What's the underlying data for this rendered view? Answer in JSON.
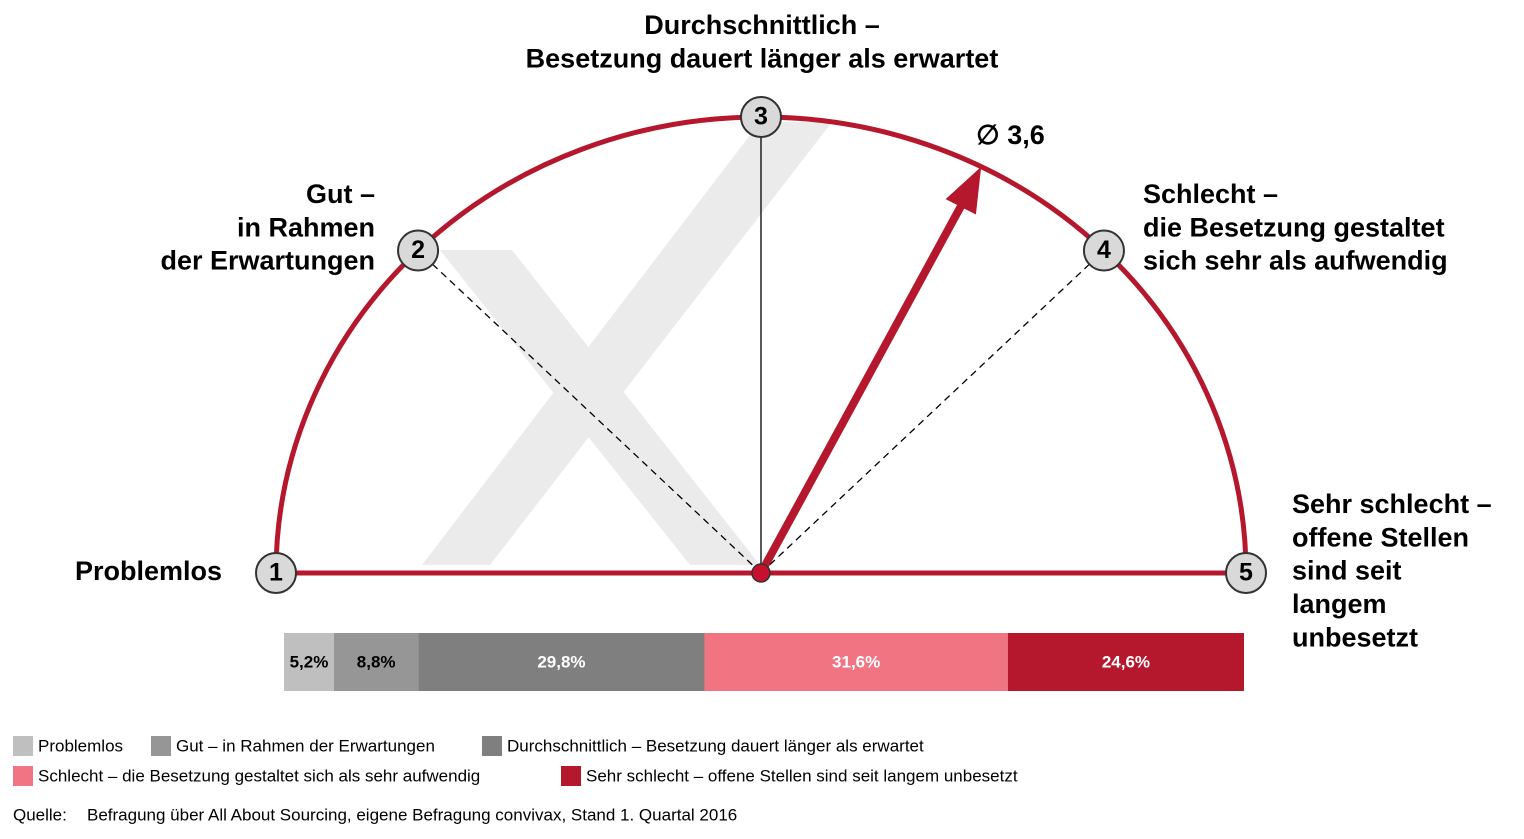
{
  "chart_data": [
    {
      "type": "gauge",
      "title": [
        "Durchschnittlich –",
        "Besetzung dauert länger als erwartet"
      ],
      "xlim": [
        1,
        5
      ],
      "xticks": [
        1,
        2,
        3,
        4,
        5
      ],
      "tick_labels": [
        [
          "Problemlos"
        ],
        [
          "Gut –",
          "in Rahmen",
          "der Erwartungen"
        ],
        [
          "Durchschnittlich –",
          "Besetzung dauert länger als erwartet"
        ],
        [
          "Schlecht –",
          "die Besetzung gestaltet",
          "sich sehr als aufwendig"
        ],
        [
          "Sehr schlecht –",
          "offene Stellen",
          "sind seit",
          "langem",
          "unbesetzt"
        ]
      ],
      "value": 3.6,
      "value_label": "∅ 3,6",
      "color": "#b5172d"
    },
    {
      "type": "bar",
      "orientation": "horizontal",
      "stacked": true,
      "xlim": [
        0,
        100
      ],
      "series": [
        {
          "name": "Problemlos",
          "color": "#bfbfbf",
          "values": [
            5.2
          ],
          "value_labels": [
            "5,2%"
          ]
        },
        {
          "name": "Gut – in Rahmen der Erwartungen",
          "color": "#969696",
          "values": [
            8.8
          ],
          "value_labels": [
            "8,8%"
          ]
        },
        {
          "name": "Durchschnittlich – Besetzung dauert länger als erwartet",
          "color": "#7f7f7f",
          "values": [
            29.8
          ],
          "value_labels": [
            "29,8%"
          ]
        },
        {
          "name": "Schlecht – die Besetzung gestaltet sich als sehr aufwendig",
          "color": "#f07482",
          "values": [
            31.6
          ],
          "value_labels": [
            "31,6%"
          ]
        },
        {
          "name": "Sehr schlecht – offene Stellen sind seit langem unbesetzt",
          "color": "#b5172d",
          "values": [
            24.6
          ],
          "value_labels": [
            "24,6%"
          ]
        }
      ],
      "source_label": "Quelle:",
      "source": "Befragung über All About Sourcing, eigene Befragung convivax, Stand 1. Quartal 2016"
    }
  ]
}
